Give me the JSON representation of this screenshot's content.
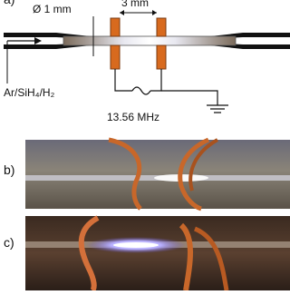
{
  "panel_a": {
    "label": "a)",
    "diameter": "Ø 1 mm",
    "gap": "3 mm",
    "gas": "Ar/SiH₄/H₂",
    "frequency": "13.56 MHz"
  },
  "panel_b": {
    "label": "b)"
  },
  "panel_c": {
    "label": "c)"
  }
}
